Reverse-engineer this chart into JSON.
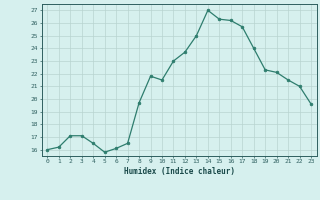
{
  "x": [
    0,
    1,
    2,
    3,
    4,
    5,
    6,
    7,
    8,
    9,
    10,
    11,
    12,
    13,
    14,
    15,
    16,
    17,
    18,
    19,
    20,
    21,
    22,
    23
  ],
  "y": [
    16.0,
    16.2,
    17.1,
    17.1,
    16.5,
    15.8,
    16.1,
    16.5,
    19.7,
    21.8,
    21.5,
    23.0,
    23.7,
    25.0,
    27.0,
    26.3,
    26.2,
    25.7,
    24.0,
    22.3,
    22.1,
    21.5,
    21.0,
    19.6
  ],
  "xlabel": "Humidex (Indice chaleur)",
  "ylabel": "",
  "ylim": [
    15.5,
    27.5
  ],
  "xlim": [
    -0.5,
    23.5
  ],
  "line_color": "#2e7d6e",
  "marker": "o",
  "marker_size": 2.0,
  "bg_color": "#d6f0ee",
  "grid_color": "#b8d4d0",
  "tick_label_color": "#2e5f5f",
  "label_color": "#1a4a4a",
  "yticks": [
    16,
    17,
    18,
    19,
    20,
    21,
    22,
    23,
    24,
    25,
    26,
    27
  ],
  "xticks": [
    0,
    1,
    2,
    3,
    4,
    5,
    6,
    7,
    8,
    9,
    10,
    11,
    12,
    13,
    14,
    15,
    16,
    17,
    18,
    19,
    20,
    21,
    22,
    23
  ]
}
